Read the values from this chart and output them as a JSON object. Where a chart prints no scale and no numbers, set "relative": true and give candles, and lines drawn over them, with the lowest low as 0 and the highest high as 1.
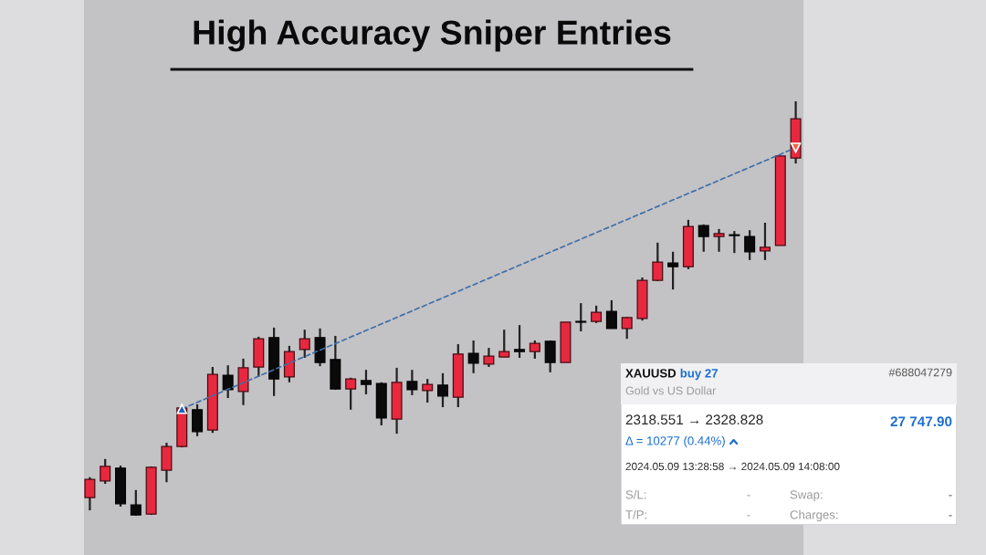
{
  "chart_data": [
    {
      "type": "candlestick",
      "title": "High Accuracy Sniper Entries",
      "relative": true,
      "categories": [
        null,
        null,
        null,
        null,
        null,
        null,
        null,
        null,
        null,
        null,
        null,
        null,
        null,
        null,
        null,
        null,
        null,
        null,
        null,
        null,
        null,
        null,
        null,
        null,
        null,
        null,
        null,
        null,
        null,
        null,
        null,
        null,
        null,
        null,
        null,
        null,
        null,
        null,
        null,
        null,
        null,
        null,
        null,
        null,
        null,
        null,
        null
      ],
      "ohlc": [
        [
          0.044,
          0.093,
          0.013,
          0.088
        ],
        [
          0.084,
          0.137,
          0.077,
          0.119
        ],
        [
          0.115,
          0.121,
          0.022,
          0.029
        ],
        [
          0.026,
          0.062,
          0.0,
          0.002
        ],
        [
          0.004,
          0.119,
          0.002,
          0.117
        ],
        [
          0.11,
          0.176,
          0.081,
          0.167
        ],
        [
          0.167,
          0.262,
          0.165,
          0.26
        ],
        [
          0.256,
          0.269,
          0.192,
          0.203
        ],
        [
          0.207,
          0.359,
          0.2,
          0.341
        ],
        [
          0.339,
          0.363,
          0.284,
          0.304
        ],
        [
          0.3,
          0.379,
          0.267,
          0.357
        ],
        [
          0.359,
          0.432,
          0.335,
          0.427
        ],
        [
          0.43,
          0.454,
          0.289,
          0.33
        ],
        [
          0.335,
          0.41,
          0.322,
          0.396
        ],
        [
          0.401,
          0.449,
          0.381,
          0.427
        ],
        [
          0.43,
          0.452,
          0.361,
          0.37
        ],
        [
          0.377,
          0.434,
          0.304,
          0.306
        ],
        [
          0.306,
          0.333,
          0.256,
          0.33
        ],
        [
          0.326,
          0.352,
          0.293,
          0.317
        ],
        [
          0.319,
          0.322,
          0.218,
          0.236
        ],
        [
          0.233,
          0.357,
          0.198,
          0.322
        ],
        [
          0.324,
          0.352,
          0.291,
          0.304
        ],
        [
          0.302,
          0.33,
          0.273,
          0.317
        ],
        [
          0.315,
          0.344,
          0.262,
          0.289
        ],
        [
          0.286,
          0.414,
          0.262,
          0.39
        ],
        [
          0.392,
          0.423,
          0.344,
          0.368
        ],
        [
          0.366,
          0.405,
          0.359,
          0.385
        ],
        [
          0.383,
          0.449,
          0.383,
          0.396
        ],
        [
          0.401,
          0.46,
          0.381,
          0.396
        ],
        [
          0.396,
          0.423,
          0.379,
          0.416
        ],
        [
          0.421,
          0.423,
          0.346,
          0.37
        ],
        [
          0.37,
          0.467,
          0.37,
          0.467
        ],
        [
          0.469,
          0.513,
          0.445,
          0.467
        ],
        [
          0.469,
          0.507,
          0.465,
          0.491
        ],
        [
          0.493,
          0.52,
          0.452,
          0.452
        ],
        [
          0.452,
          0.48,
          0.427,
          0.478
        ],
        [
          0.476,
          0.575,
          0.471,
          0.568
        ],
        [
          0.568,
          0.659,
          0.566,
          0.612
        ],
        [
          0.61,
          0.637,
          0.546,
          0.601
        ],
        [
          0.601,
          0.714,
          0.595,
          0.698
        ],
        [
          0.7,
          0.703,
          0.637,
          0.674
        ],
        [
          0.674,
          0.692,
          0.637,
          0.681
        ],
        [
          0.678,
          0.687,
          0.634,
          0.676
        ],
        [
          0.674,
          0.689,
          0.617,
          0.637
        ],
        [
          0.639,
          0.707,
          0.617,
          0.648
        ],
        [
          0.652,
          0.868,
          0.652,
          0.868
        ],
        [
          0.863,
          1.0,
          0.85,
          0.958
        ]
      ],
      "colors": [
        "#e8283f",
        "#e8283f",
        "#0a0a0a",
        "#0a0a0a",
        "#e8283f",
        "#e8283f",
        "#e8283f",
        "#0a0a0a",
        "#e8283f",
        "#0a0a0a",
        "#e8283f",
        "#e8283f",
        "#0a0a0a",
        "#e8283f",
        "#e8283f",
        "#0a0a0a",
        "#0a0a0a",
        "#e8283f",
        "#0a0a0a",
        "#0a0a0a",
        "#e8283f",
        "#0a0a0a",
        "#e8283f",
        "#0a0a0a",
        "#e8283f",
        "#0a0a0a",
        "#e8283f",
        "#e8283f",
        "#0a0a0a",
        "#e8283f",
        "#0a0a0a",
        "#e8283f",
        "#0a0a0a",
        "#e8283f",
        "#0a0a0a",
        "#e8283f",
        "#e8283f",
        "#e8283f",
        "#0a0a0a",
        "#e8283f",
        "#0a0a0a",
        "#e8283f",
        "#0a0a0a",
        "#0a0a0a",
        "#e8283f",
        "#e8283f",
        "#e8283f"
      ],
      "series": [
        {
          "type": "line",
          "color": "#3d6fa8",
          "line_style": "dashed",
          "marker": "triangle",
          "values": [
            null,
            null,
            null,
            null,
            null,
            null,
            0.258,
            null,
            null,
            null,
            null,
            null,
            null,
            null,
            null,
            null,
            null,
            null,
            null,
            null,
            null,
            null,
            null,
            null,
            null,
            null,
            null,
            null,
            null,
            null,
            null,
            null,
            null,
            null,
            null,
            null,
            null,
            null,
            null,
            null,
            null,
            null,
            null,
            null,
            null,
            null,
            0.888
          ]
        }
      ]
    },
    {
      "type": "other",
      "annotations": [
        "XAUUSD",
        "buy 27",
        "#688047279",
        "Gold vs US Dollar",
        "2318.551 → 2328.828",
        "27 747.90",
        "Δ = 10277 (0.44%)",
        "2024.05.09 13:28:58 → 2024.05.09 14:08:00",
        "S/L:",
        "-",
        "Swap:",
        "-",
        "T/P:",
        "-",
        "Charges:",
        "-"
      ]
    }
  ]
}
